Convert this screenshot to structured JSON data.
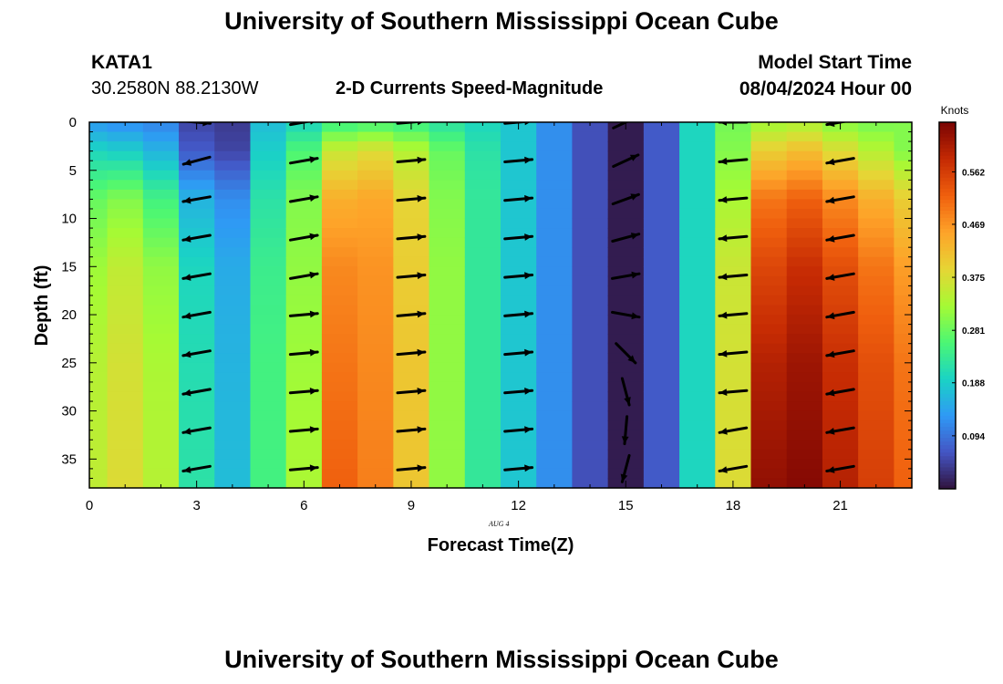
{
  "header": {
    "title": "University of Southern Mississippi Ocean Cube",
    "station": "KATA1",
    "coords": "30.2580N  88.2130W",
    "plot_title": "2-D Currents Speed-Magnitude",
    "model_start_label": "Model Start Time",
    "model_start_value": "08/04/2024 Hour 00"
  },
  "footer": {
    "title": "University of Southern Mississippi Ocean Cube"
  },
  "date_label": "AUG 4",
  "chart_data": {
    "type": "heatmap",
    "title": "2-D Currents Speed-Magnitude",
    "xlabel": "Forecast Time(Z)",
    "ylabel": "Depth (ft)",
    "xlim": [
      0,
      23
    ],
    "ylim": [
      0,
      38
    ],
    "y_inverted": true,
    "x_ticks": [
      0,
      3,
      6,
      9,
      12,
      15,
      18,
      21
    ],
    "y_ticks": [
      0,
      5,
      10,
      15,
      20,
      25,
      30,
      35
    ],
    "colorbar": {
      "label": "Knots",
      "range": [
        0,
        0.65
      ],
      "ticks": [
        0.094,
        0.188,
        0.281,
        0.375,
        0.469,
        0.562
      ],
      "colormap": [
        "#30123b",
        "#4455c4",
        "#2f99f5",
        "#1ad3c5",
        "#4bf774",
        "#a6fa34",
        "#e6d535",
        "#fea329",
        "#f0600e",
        "#c52a03",
        "#7a0403"
      ]
    },
    "hours": [
      0,
      1,
      2,
      3,
      4,
      5,
      6,
      7,
      8,
      9,
      10,
      11,
      12,
      13,
      14,
      15,
      16,
      17,
      18,
      19,
      20,
      21,
      22,
      23
    ],
    "depth_profiles": [
      {
        "hour": 0,
        "speed": [
          0.13,
          0.2,
          0.28,
          0.32,
          0.34,
          0.35
        ]
      },
      {
        "hour": 1,
        "speed": [
          0.12,
          0.19,
          0.3,
          0.35,
          0.37,
          0.38
        ]
      },
      {
        "hour": 2,
        "speed": [
          0.11,
          0.16,
          0.25,
          0.31,
          0.33,
          0.34
        ]
      },
      {
        "hour": 3,
        "speed": [
          0.05,
          0.07,
          0.16,
          0.2,
          0.21,
          0.22
        ]
      },
      {
        "hour": 4,
        "speed": [
          0.04,
          0.05,
          0.12,
          0.15,
          0.16,
          0.17
        ]
      },
      {
        "hour": 5,
        "speed": [
          0.17,
          0.19,
          0.22,
          0.24,
          0.25,
          0.25
        ]
      },
      {
        "hour": 6,
        "speed": [
          0.2,
          0.26,
          0.3,
          0.31,
          0.32,
          0.33
        ]
      },
      {
        "hour": 7,
        "speed": [
          0.24,
          0.36,
          0.44,
          0.48,
          0.5,
          0.52
        ]
      },
      {
        "hour": 8,
        "speed": [
          0.25,
          0.38,
          0.45,
          0.47,
          0.48,
          0.49
        ]
      },
      {
        "hour": 9,
        "speed": [
          0.24,
          0.34,
          0.39,
          0.4,
          0.41,
          0.41
        ]
      },
      {
        "hour": 10,
        "speed": [
          0.22,
          0.28,
          0.3,
          0.31,
          0.31,
          0.31
        ]
      },
      {
        "hour": 11,
        "speed": [
          0.2,
          0.22,
          0.23,
          0.23,
          0.23,
          0.23
        ]
      },
      {
        "hour": 12,
        "speed": [
          0.18,
          0.18,
          0.18,
          0.18,
          0.18,
          0.18
        ]
      },
      {
        "hour": 13,
        "speed": [
          0.12,
          0.12,
          0.12,
          0.12,
          0.12,
          0.12
        ]
      },
      {
        "hour": 14,
        "speed": [
          0.06,
          0.06,
          0.06,
          0.06,
          0.06,
          0.06
        ]
      },
      {
        "hour": 15,
        "speed": [
          0.01,
          0.01,
          0.01,
          0.01,
          0.01,
          0.01
        ]
      },
      {
        "hour": 16,
        "speed": [
          0.07,
          0.07,
          0.07,
          0.07,
          0.07,
          0.07
        ]
      },
      {
        "hour": 17,
        "speed": [
          0.2,
          0.2,
          0.2,
          0.2,
          0.2,
          0.2
        ]
      },
      {
        "hour": 18,
        "speed": [
          0.29,
          0.3,
          0.33,
          0.36,
          0.37,
          0.38
        ]
      },
      {
        "hour": 19,
        "speed": [
          0.32,
          0.4,
          0.5,
          0.55,
          0.6,
          0.63
        ]
      },
      {
        "hour": 20,
        "speed": [
          0.33,
          0.42,
          0.52,
          0.58,
          0.62,
          0.64
        ]
      },
      {
        "hour": 21,
        "speed": [
          0.3,
          0.38,
          0.48,
          0.54,
          0.58,
          0.6
        ]
      },
      {
        "hour": 22,
        "speed": [
          0.29,
          0.34,
          0.44,
          0.5,
          0.54,
          0.56
        ]
      },
      {
        "hour": 23,
        "speed": [
          0.3,
          0.3,
          0.4,
          0.46,
          0.5,
          0.52
        ]
      }
    ],
    "profile_depths": [
      0,
      3,
      8,
      15,
      25,
      38
    ],
    "vector_hours": [
      3,
      6,
      9,
      12,
      15,
      18,
      21
    ],
    "vector_depths": [
      0,
      4,
      8,
      12,
      16,
      20,
      24,
      28,
      32,
      36
    ],
    "vectors_deg": [
      {
        "hour": 3,
        "direction_deg": [
          -5,
          195,
          190,
          190,
          190,
          190,
          190,
          190,
          190,
          190
        ]
      },
      {
        "hour": 6,
        "direction_deg": [
          10,
          10,
          10,
          10,
          10,
          5,
          5,
          5,
          5,
          5
        ]
      },
      {
        "hour": 9,
        "direction_deg": [
          5,
          5,
          5,
          5,
          5,
          5,
          5,
          5,
          5,
          5
        ]
      },
      {
        "hour": 12,
        "direction_deg": [
          5,
          5,
          5,
          5,
          5,
          5,
          5,
          5,
          5,
          5
        ]
      },
      {
        "hour": 15,
        "direction_deg": [
          25,
          25,
          20,
          15,
          10,
          -10,
          -45,
          -75,
          -95,
          -105
        ]
      },
      {
        "hour": 18,
        "direction_deg": [
          180,
          185,
          185,
          185,
          185,
          185,
          185,
          185,
          190,
          190
        ]
      },
      {
        "hour": 21,
        "direction_deg": [
          190,
          190,
          190,
          190,
          190,
          190,
          190,
          190,
          190,
          190
        ]
      }
    ]
  }
}
